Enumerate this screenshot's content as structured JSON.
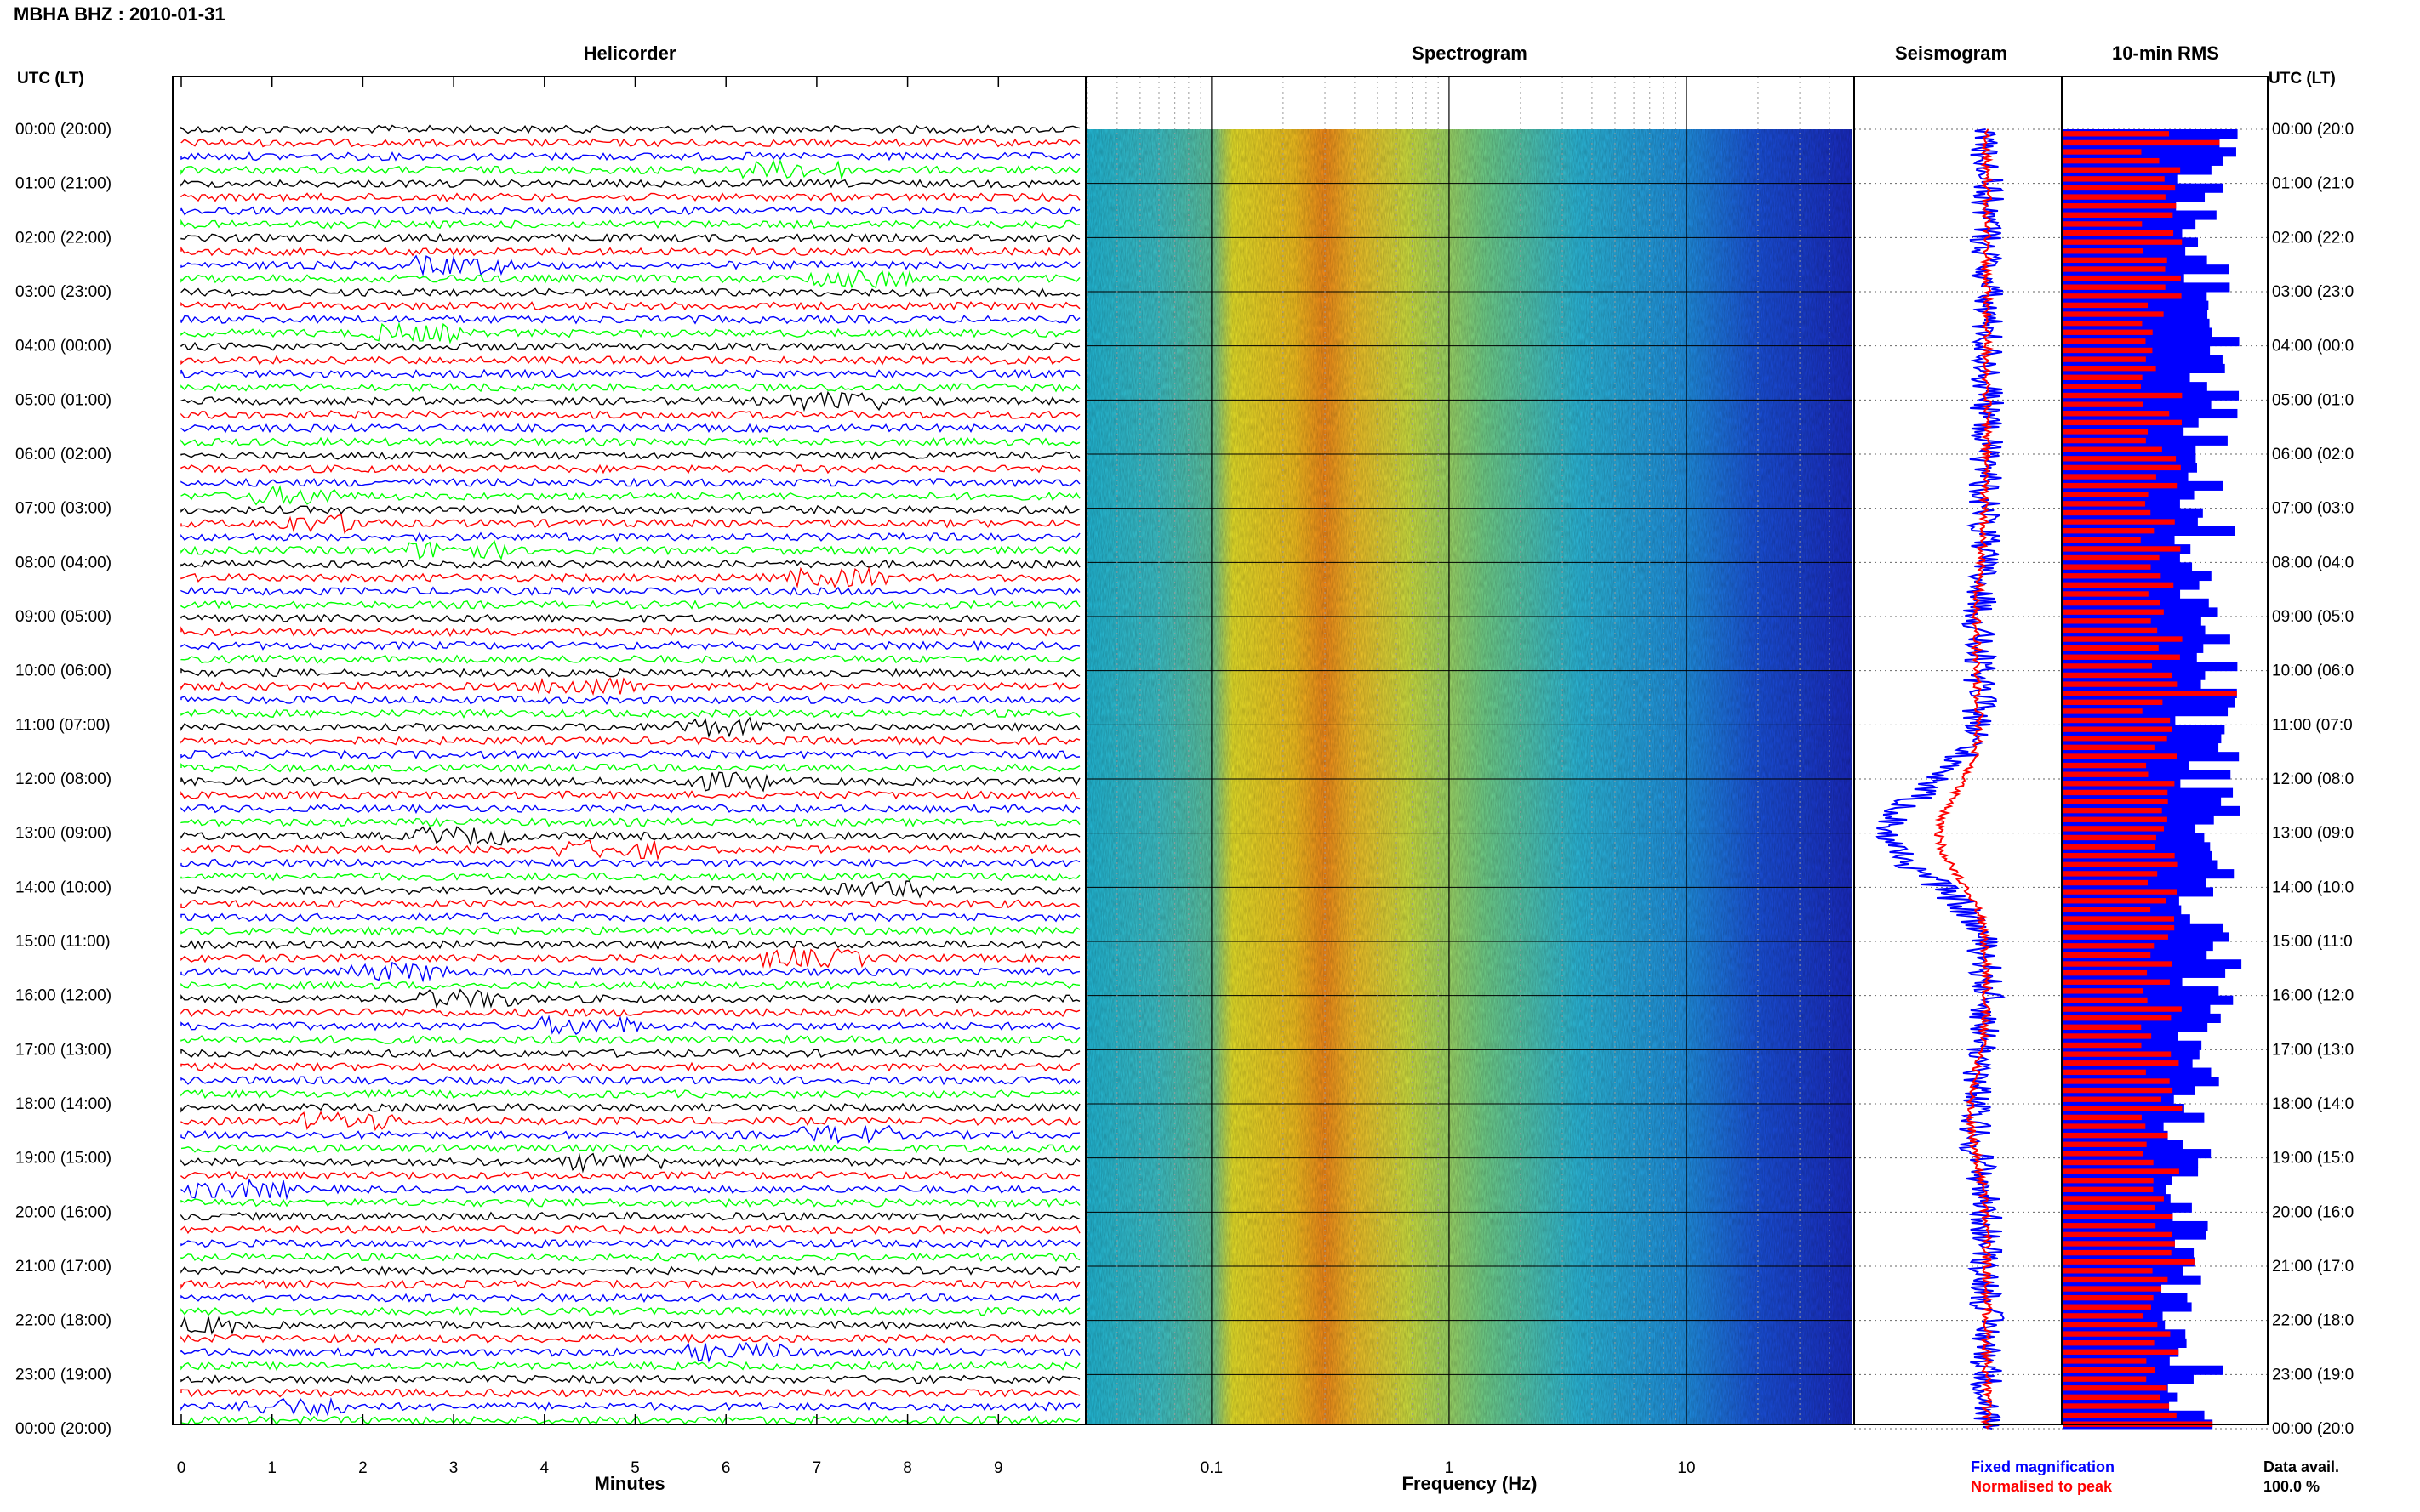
{
  "chart_data": {
    "type": "multi-panel seismic display",
    "title": "MBHA BHZ : 2010-01-31",
    "panels": {
      "helicorder": {
        "title": "Helicorder",
        "xlabel": "Minutes",
        "x_ticks": [
          "0",
          "1",
          "2",
          "3",
          "4",
          "5",
          "6",
          "7",
          "8",
          "9"
        ],
        "xlim": [
          0,
          10
        ],
        "trace_colors": [
          "#000000",
          "#ff0000",
          "#0000ff",
          "#00ff00"
        ]
      },
      "spectrogram": {
        "title": "Spectrogram",
        "xlabel": "Frequency (Hz)",
        "x_scale": "log",
        "x_ticks": [
          "0.1",
          "1",
          "10"
        ],
        "xlim": [
          0.03,
          50
        ]
      },
      "seismogram": {
        "title": "Seismogram",
        "series": [
          {
            "name": "Fixed magnification",
            "color": "#0000ff"
          },
          {
            "name": "Normalised to peak",
            "color": "#ff0000"
          }
        ]
      },
      "rms": {
        "title": "10-min RMS",
        "series_colors": [
          "#0000ff",
          "#ff0000"
        ]
      }
    },
    "y_axis_label": "UTC (LT)",
    "left_time_labels": [
      "00:00 (20:00)",
      "01:00 (21:00)",
      "02:00 (22:00)",
      "03:00 (23:00)",
      "04:00 (00:00)",
      "05:00 (01:00)",
      "06:00 (02:00)",
      "07:00 (03:00)",
      "08:00 (04:00)",
      "09:00 (05:00)",
      "10:00 (06:00)",
      "11:00 (07:00)",
      "12:00 (08:00)",
      "13:00 (09:00)",
      "14:00 (10:00)",
      "15:00 (11:00)",
      "16:00 (12:00)",
      "17:00 (13:00)",
      "18:00 (14:00)",
      "19:00 (15:00)",
      "20:00 (16:00)",
      "21:00 (17:00)",
      "22:00 (18:00)",
      "23:00 (19:00)",
      "00:00 (20:00)"
    ],
    "right_time_labels": [
      "00:00 (20:0",
      "01:00 (21:0",
      "02:00 (22:0",
      "03:00 (23:0",
      "04:00 (00:0",
      "05:00 (01:0",
      "06:00 (02:0",
      "07:00 (03:0",
      "08:00 (04:0",
      "09:00 (05:0",
      "10:00 (06:0",
      "11:00 (07:0",
      "12:00 (08:0",
      "13:00 (09:0",
      "14:00 (10:0",
      "15:00 (11:0",
      "16:00 (12:0",
      "17:00 (13:0",
      "18:00 (14:0",
      "19:00 (15:0",
      "20:00 (16:0",
      "21:00 (17:0",
      "22:00 (18:0",
      "23:00 (19:0",
      "00:00 (20:0"
    ],
    "footer": {
      "data_avail_label": "Data avail.",
      "data_avail_value": "100.0 %"
    }
  }
}
